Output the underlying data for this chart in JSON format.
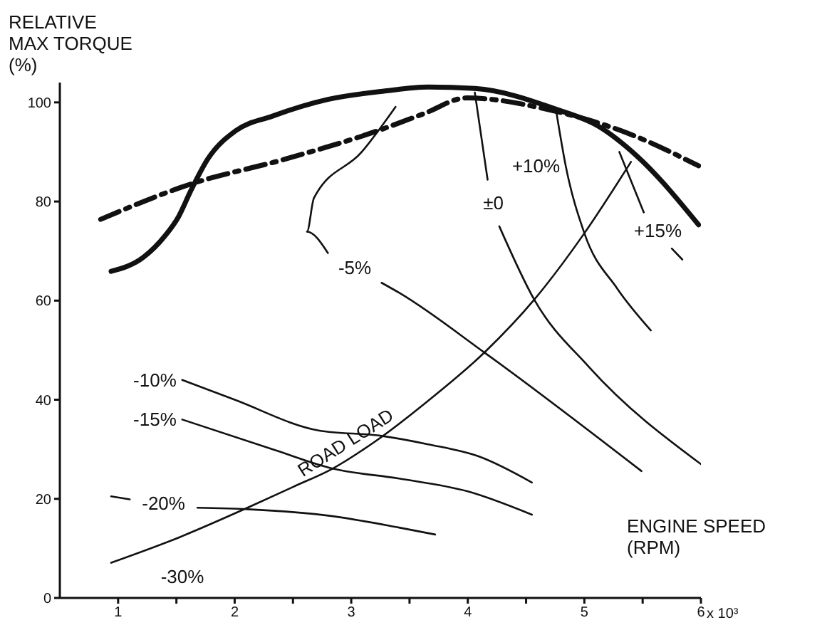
{
  "chart_data": {
    "type": "line",
    "ylabel": "RELATIVE MAX TORQUE (%)",
    "xlabel": "ENGINE SPEED (RPM)",
    "xlim": [
      0.5,
      6
    ],
    "xticks": [
      1,
      {
        "value": 1.5,
        "label": null
      },
      2,
      {
        "value": 2.5,
        "label": null
      },
      3,
      {
        "value": 3.5,
        "label": null
      },
      4,
      {
        "value": 4.5,
        "label": null
      },
      5,
      {
        "value": 5.5,
        "label": null
      },
      6
    ],
    "ylim": [
      0,
      104
    ],
    "yticks": [
      0,
      20,
      40,
      60,
      80,
      100
    ],
    "grid": false,
    "series": [
      {
        "color": "#111111",
        "line_style": "solid",
        "x": [
          0.94,
          1.22,
          1.4,
          1.52,
          1.62,
          1.77,
          2.01,
          2.32,
          2.8,
          3.29,
          3.66,
          4.06,
          4.76,
          5.12,
          5.45,
          5.98
        ],
        "values": [
          65.9,
          68.8,
          73,
          77,
          82,
          88.6,
          94.3,
          97.2,
          100.6,
          102.3,
          103.1,
          102.8,
          98.6,
          95.2,
          89.2,
          75.3
        ]
      },
      {
        "color": "#111111",
        "line_style": "dashed",
        "x": [
          0.85,
          1.62,
          2.44,
          3.23,
          3.62,
          3.99,
          4.7,
          5.37,
          5.98
        ],
        "values": [
          76.4,
          83.5,
          88.6,
          94.3,
          97.7,
          100.9,
          98.5,
          93.8,
          87.2
        ]
      },
      {
        "color": "#111111",
        "line_style": "solid",
        "name": "ROAD LOAD",
        "x": [
          0.94,
          1.5,
          2.11,
          2.5,
          2.84,
          3.2,
          3.66,
          4.15,
          4.57,
          5.0,
          5.4
        ],
        "values": [
          7.1,
          12,
          18.2,
          22.4,
          26.1,
          31.5,
          39.8,
          49.7,
          60.2,
          73.6,
          88
        ]
      },
      {
        "color": "#111111",
        "line_style": "solid",
        "name": "-5%",
        "x": [
          3.38,
          3.09,
          2.68,
          2.62,
          2.8,
          2.95,
          3.26,
          3.41,
          4.15,
          5.49
        ],
        "values": [
          99.1,
          90,
          80.7,
          73.9,
          69.6,
          null,
          63.6,
          61.6,
          49.4,
          25.6
        ]
      },
      {
        "color": "#111111",
        "line_style": "solid",
        "name": "±0",
        "x": [
          4.06,
          4.17,
          4.2,
          4.27,
          4.57,
          5.04,
          6.0
        ],
        "values": [
          102,
          84.4,
          null,
          75,
          60.2,
          46.6,
          27
        ]
      },
      {
        "color": "#111111",
        "line_style": "solid",
        "name": "+10%",
        "x": [
          4.76,
          4.84,
          5.0,
          5.28,
          5.57
        ],
        "values": [
          98,
          87.2,
          73.6,
          62.5,
          54
        ]
      },
      {
        "color": "#111111",
        "line_style": "solid",
        "name": "+15%",
        "x": [
          5.3,
          5.51,
          5.6,
          5.75,
          5.84
        ],
        "values": [
          90,
          77.8,
          null,
          70.5,
          68.3
        ]
      },
      {
        "color": "#111111",
        "line_style": "solid",
        "name": "-10%",
        "x": [
          1.55,
          2.0,
          2.72,
          3.26,
          3.66,
          4.1,
          4.55
        ],
        "values": [
          44,
          40,
          33.8,
          32.7,
          31,
          28.5,
          23.3
        ]
      },
      {
        "color": "#111111",
        "line_style": "solid",
        "name": "-15%",
        "x": [
          1.55,
          2.35,
          2.84,
          3.41,
          4.0,
          4.55
        ],
        "values": [
          36,
          29.8,
          26.1,
          24.1,
          21.5,
          16.8
        ]
      },
      {
        "color": "#111111",
        "line_style": "solid",
        "name": "-20%",
        "x": [
          0.94,
          1.1,
          1.4,
          1.68,
          2.11,
          2.84,
          3.41,
          3.72
        ],
        "values": [
          20.5,
          19.9,
          null,
          18.2,
          17.9,
          16.5,
          14.2,
          12.8
        ]
      }
    ],
    "annotations": [
      "-30%",
      "x 10³"
    ]
  }
}
